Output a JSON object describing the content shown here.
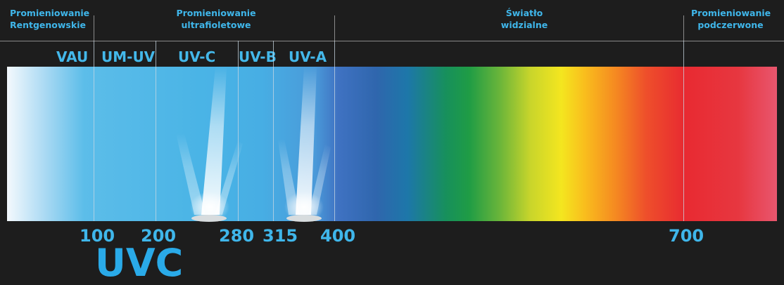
{
  "categories": [
    {
      "line1": "Promieniowanie",
      "line2": "Rentgenowskie"
    },
    {
      "line1": "Promieniowanie",
      "line2": "ultrafioletowe"
    },
    {
      "line1": "Światło",
      "line2": "widzialne"
    },
    {
      "line1": "Promieniowanie",
      "line2": "podczerwone"
    }
  ],
  "bands": [
    "VAU",
    "UM-UV",
    "UV-C",
    "UV-B",
    "UV-A"
  ],
  "wavelength_ticks": [
    "100",
    "200",
    "280",
    "315",
    "400",
    "700"
  ],
  "product_label": "UVC",
  "colors": {
    "label_blue": "#3fb6ea",
    "background": "#1d1d1d"
  },
  "icons": [
    "uv-lamp-icon",
    "uv-lamp-icon"
  ]
}
